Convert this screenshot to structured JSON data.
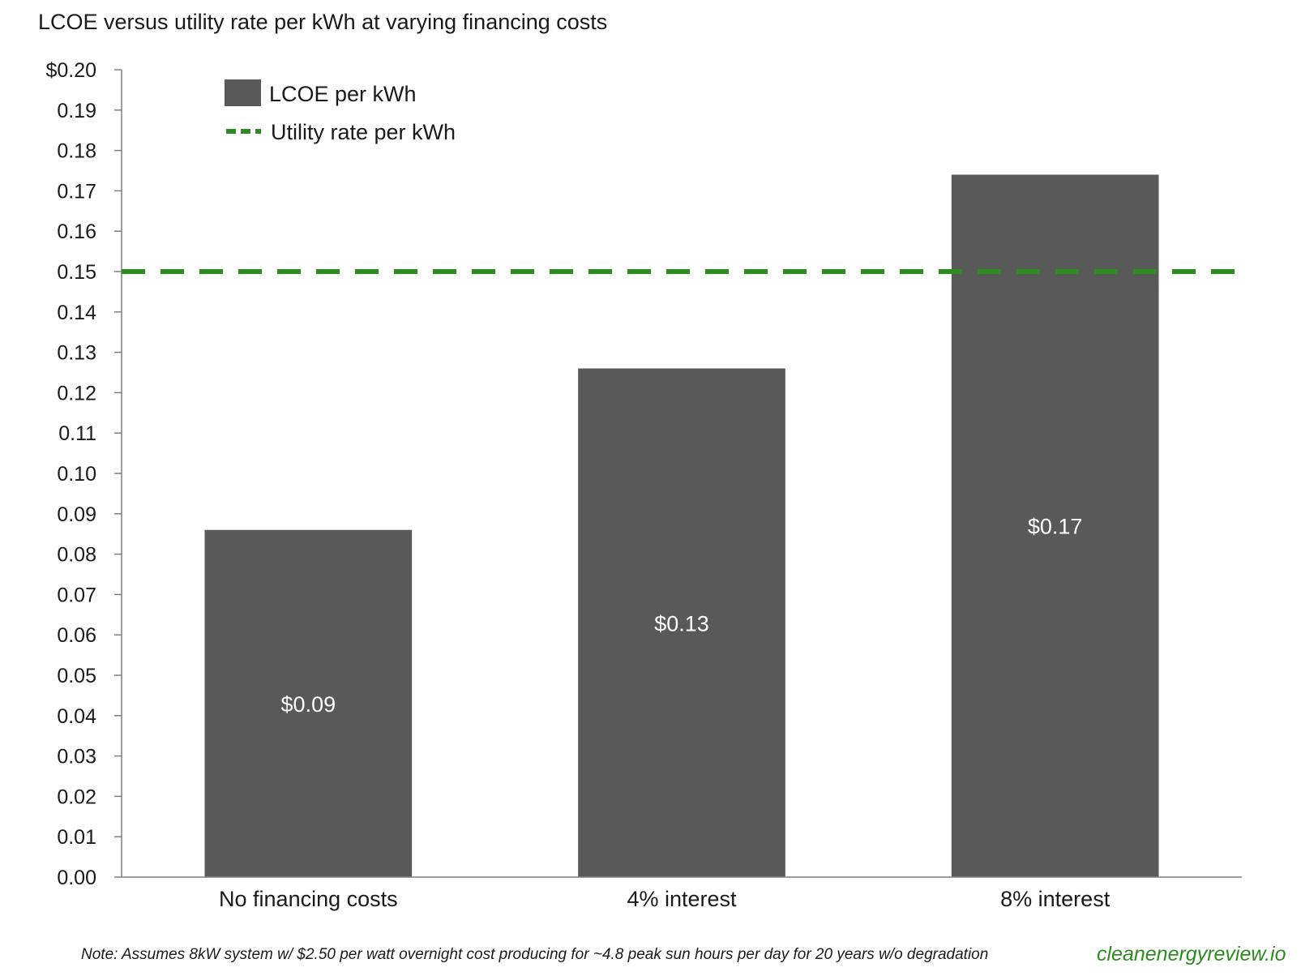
{
  "chart_data": {
    "type": "bar",
    "title": "LCOE versus utility rate per kWh at varying financing costs",
    "categories": [
      "No financing costs",
      "4% interest",
      "8% interest"
    ],
    "series": [
      {
        "name": "LCOE per kWh",
        "values": [
          0.086,
          0.126,
          0.174
        ],
        "color": "#595959"
      }
    ],
    "data_labels": [
      "$0.09",
      "$0.13",
      "$0.17"
    ],
    "reference_line": {
      "name": "Utility rate per kWh",
      "value": 0.15,
      "color": "#2e8b22",
      "style": "dashed"
    },
    "ylim": [
      0,
      0.2
    ],
    "yticks": [
      0,
      0.01,
      0.02,
      0.03,
      0.04,
      0.05,
      0.06,
      0.07,
      0.08,
      0.09,
      0.1,
      0.11,
      0.12,
      0.13,
      0.14,
      0.15,
      0.16,
      0.17,
      0.18,
      0.19,
      0.2
    ],
    "ytick_labels": [
      "0.00",
      "0.01",
      "0.02",
      "0.03",
      "0.04",
      "0.05",
      "0.06",
      "0.07",
      "0.08",
      "0.09",
      "0.10",
      "0.11",
      "0.12",
      "0.13",
      "0.14",
      "0.15",
      "0.16",
      "0.17",
      "0.18",
      "0.19",
      "$0.20"
    ],
    "legend": {
      "placement": "top-left",
      "entries": [
        "LCOE per kWh",
        "Utility rate per kWh"
      ]
    },
    "grid": false,
    "note": "Note: Assumes 8kW system w/ $2.50 per watt overnight cost producing for ~4.8 peak sun hours per day for 20 years w/o degradation",
    "source": "cleanenergyreview.io",
    "source_color": "#2e8b22"
  }
}
